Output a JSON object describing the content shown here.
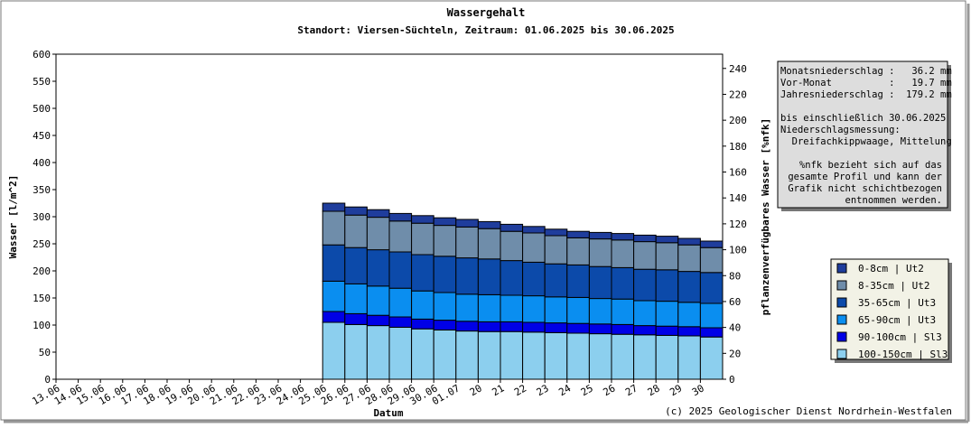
{
  "chart_data": {
    "type": "bar",
    "stacked": true,
    "title": "Wassergehalt",
    "subtitle": "Standort: Viersen-Süchteln, Zeitraum: 01.06.2025 bis 30.06.2025",
    "x_label": "Datum",
    "y_label": "Wasser [l/m^2]",
    "y2_label": "pflanzenverfügbares Wasser [%nfk]",
    "categories": [
      "13.06",
      "14.06",
      "15.06",
      "16.06",
      "17.06",
      "18.06",
      "19.06",
      "20.06",
      "21.06",
      "22.06",
      "23.06",
      "24.06",
      "25.06",
      "26.06",
      "27.06",
      "28.06",
      "29.06",
      "30.06",
      "01.07",
      "20",
      "21",
      "22",
      "23",
      "24",
      "25",
      "26",
      "27",
      "28",
      "29",
      "30"
    ],
    "ylim": [
      0,
      600
    ],
    "yticks": [
      0,
      50,
      100,
      150,
      200,
      250,
      300,
      350,
      400,
      450,
      500,
      550,
      600
    ],
    "y2lim": [
      0,
      251
    ],
    "y2ticks": [
      0,
      20,
      40,
      60,
      80,
      100,
      120,
      140,
      160,
      180,
      200,
      220,
      240
    ],
    "series": [
      {
        "name": "0-8cm | Ut2",
        "color": "#1f3d9c",
        "values": [
          null,
          null,
          null,
          null,
          null,
          null,
          null,
          null,
          null,
          null,
          null,
          null,
          15,
          15,
          14,
          14,
          14,
          14,
          14,
          13,
          13,
          12,
          12,
          12,
          12,
          12,
          12,
          12,
          12,
          12
        ]
      },
      {
        "name": "8-35cm | Ut2",
        "color": "#6f8daa",
        "values": [
          null,
          null,
          null,
          null,
          null,
          null,
          null,
          null,
          null,
          null,
          null,
          null,
          62,
          60,
          60,
          57,
          58,
          57,
          57,
          56,
          54,
          54,
          52,
          50,
          51,
          51,
          51,
          50,
          49,
          46
        ]
      },
      {
        "name": "35-65cm | Ut3",
        "color": "#0c4aaa",
        "values": [
          null,
          null,
          null,
          null,
          null,
          null,
          null,
          null,
          null,
          null,
          null,
          null,
          67,
          67,
          67,
          67,
          67,
          67,
          67,
          66,
          64,
          62,
          61,
          60,
          59,
          58,
          58,
          58,
          57,
          57
        ]
      },
      {
        "name": "65-90cm | Ut3",
        "color": "#0a8ef0",
        "values": [
          null,
          null,
          null,
          null,
          null,
          null,
          null,
          null,
          null,
          null,
          null,
          null,
          56,
          55,
          54,
          53,
          52,
          51,
          50,
          50,
          49,
          49,
          48,
          48,
          47,
          47,
          46,
          46,
          45,
          45
        ]
      },
      {
        "name": "90-100cm | Sl3",
        "color": "#0000e6",
        "values": [
          null,
          null,
          null,
          null,
          null,
          null,
          null,
          null,
          null,
          null,
          null,
          null,
          20,
          20,
          19,
          19,
          18,
          18,
          18,
          18,
          18,
          18,
          18,
          18,
          18,
          18,
          17,
          17,
          17,
          17
        ]
      },
      {
        "name": "100-150cm | Sl3",
        "color": "#8ccfee",
        "values": [
          null,
          null,
          null,
          null,
          null,
          null,
          null,
          null,
          null,
          null,
          null,
          null,
          105,
          101,
          99,
          96,
          93,
          91,
          89,
          88,
          88,
          87,
          86,
          85,
          84,
          83,
          82,
          81,
          80,
          78
        ]
      }
    ],
    "info_blocks": [
      [
        "Monatsniederschlag :   36.2 mm",
        "Vor-Monat          :   19.7 mm",
        "Jahresniederschlag :  179.2 mm"
      ],
      [
        "bis einschließlich 30.06.2025",
        "Niederschlagsmessung:",
        "  Dreifachkippwaage, Mittelung"
      ],
      [
        "%nfk bezieht sich auf das",
        "gesamte Profil und kann der",
        "Grafik nicht schichtbezogen",
        "entnommen werden."
      ]
    ],
    "copyright": "(c) 2025 Geologischer Dienst Nordrhein-Westfalen"
  }
}
